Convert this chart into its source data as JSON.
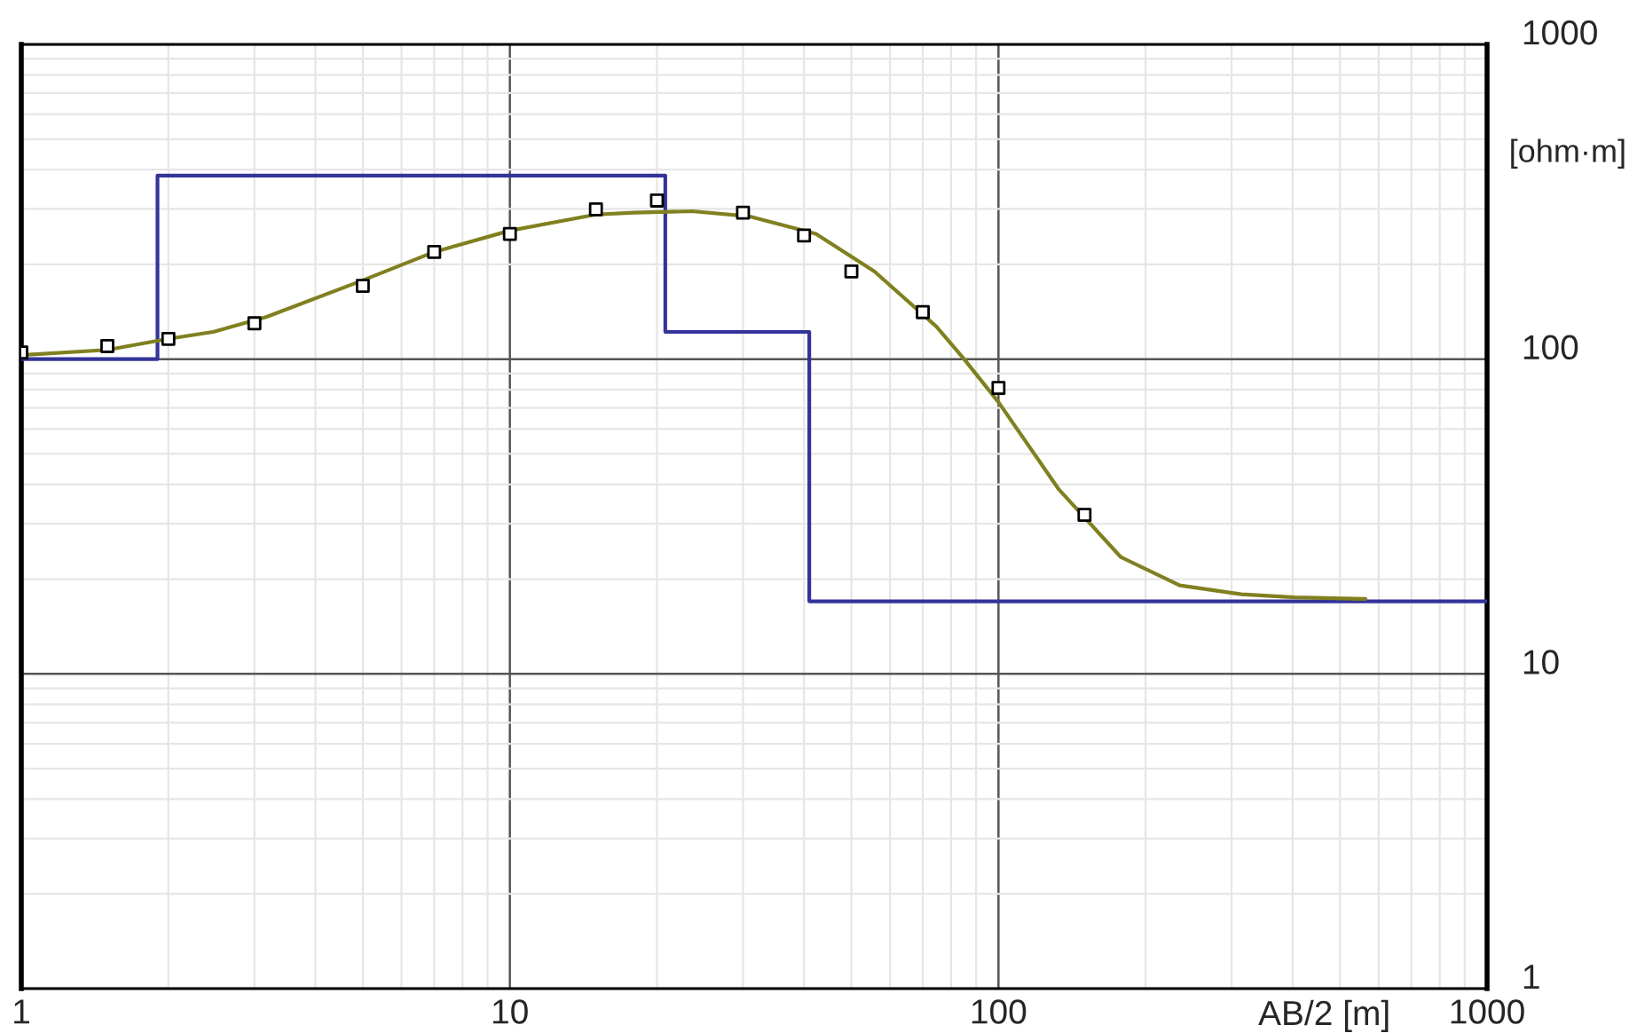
{
  "chart_data": {
    "type": "line",
    "xlabel": "AB/2 [m]",
    "ylabel": "[ohm·m]",
    "log": "xy",
    "grid": true,
    "xlim": [
      1,
      1000
    ],
    "xticks": [
      1,
      10,
      100,
      1000
    ],
    "ylim": [
      1,
      1000
    ],
    "yticks": [
      1,
      10,
      100,
      1000
    ],
    "series": [
      {
        "color": "#333399",
        "line_style": "solid",
        "x": [
          1,
          1.9,
          1.9,
          20.8,
          20.8,
          41,
          41,
          1000
        ],
        "values": [
          100,
          100,
          383,
          383,
          122,
          122,
          17,
          17
        ]
      },
      {
        "color": "#808020",
        "line_style": "solid",
        "x": [
          1,
          1.5,
          2.0,
          2.47,
          3.17,
          5.0,
          7.0,
          10,
          15,
          17.9,
          23.6,
          31,
          42.3,
          55.7,
          74.6,
          84.6,
          100,
          133,
          178,
          235,
          314,
          404,
          564
        ],
        "values": [
          103,
          107,
          116,
          122,
          136,
          178,
          219,
          256,
          288,
          292,
          295,
          284,
          250,
          190,
          127,
          101,
          73,
          38.5,
          23.5,
          19.1,
          17.9,
          17.5,
          17.3
        ]
      },
      {
        "type": "scatter",
        "color": "#000000",
        "marker": "square",
        "x": [
          1,
          1.5,
          2,
          3,
          5,
          7,
          10,
          15,
          20,
          30,
          40,
          50,
          70,
          100,
          150
        ],
        "values": [
          105,
          110,
          116,
          130,
          171,
          219,
          250,
          299,
          319,
          292,
          247,
          190,
          141,
          81,
          32
        ]
      }
    ]
  }
}
